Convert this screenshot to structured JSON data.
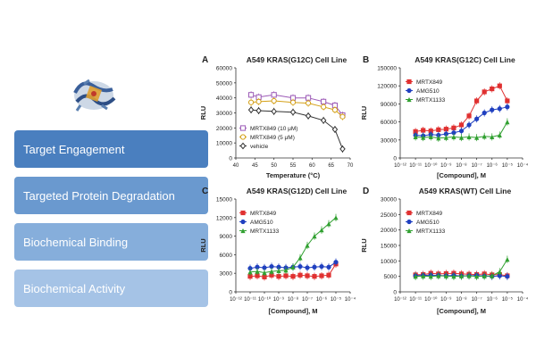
{
  "nav": {
    "items": [
      {
        "label": "Target Engagement"
      },
      {
        "label": "Targeted Protein Degradation"
      },
      {
        "label": "Biochemical Binding"
      },
      {
        "label": "Biochemical Activity"
      }
    ]
  },
  "colors": {
    "nav1": "#4a7fbf",
    "nav2": "#6a99cf",
    "nav3": "#86aedb",
    "nav4": "#a5c3e6"
  },
  "chart_data": [
    {
      "panel": "A",
      "type": "scatter",
      "title": "A549 KRAS(G12C) Cell Line",
      "xlabel": "Temperature (°C)",
      "ylabel": "RLU",
      "xlim": [
        40,
        70
      ],
      "ylim": [
        0,
        60000
      ],
      "xticks": [
        "40",
        "45",
        "50",
        "55",
        "60",
        "65",
        "70"
      ],
      "yticks": [
        "0",
        "10000",
        "20000",
        "30000",
        "40000",
        "50000",
        "60000"
      ],
      "series": [
        {
          "name": "MRTX849 (10 μM)",
          "color": "#9b59b6",
          "marker": "square-open",
          "x": [
            44,
            46,
            50,
            55,
            59,
            63,
            66,
            68
          ],
          "y": [
            42000,
            40500,
            42000,
            40000,
            40000,
            37500,
            35000,
            28500
          ],
          "fit": true
        },
        {
          "name": "MRTX849 (5 μM)",
          "color": "#d4a017",
          "marker": "circle-open",
          "x": [
            44,
            46,
            50,
            55,
            59,
            63,
            66,
            68
          ],
          "y": [
            37000,
            37500,
            38000,
            37000,
            36500,
            34000,
            32000,
            27500
          ],
          "fit": true
        },
        {
          "name": "vehicle",
          "color": "#333333",
          "marker": "diamond-open",
          "x": [
            44,
            46,
            50,
            55,
            59,
            63,
            66,
            68
          ],
          "y": [
            32000,
            31500,
            31000,
            30500,
            28000,
            25000,
            19000,
            6000
          ],
          "fit": true
        }
      ]
    },
    {
      "panel": "B",
      "type": "scatter",
      "title": "A549 KRAS(G12C) Cell Line",
      "xlabel": "[Compound], M",
      "ylabel": "RLU",
      "xlim": [
        -12,
        -4
      ],
      "ylim": [
        0,
        150000
      ],
      "xticks": [
        "10⁻¹²",
        "10⁻¹¹",
        "10⁻¹⁰",
        "10⁻⁹",
        "10⁻⁸",
        "10⁻⁷",
        "10⁻⁶",
        "10⁻⁵",
        "10⁻⁴"
      ],
      "yticks": [
        "0",
        "30000",
        "60000",
        "90000",
        "120000",
        "150000"
      ],
      "series": [
        {
          "name": "MRTX849",
          "color": "#e03030",
          "marker": "square",
          "x": [
            -11,
            -10.5,
            -10,
            -9.5,
            -9,
            -8.5,
            -8,
            -7.5,
            -7,
            -6.5,
            -6,
            -5.5,
            -5
          ],
          "y": [
            44000,
            46000,
            45000,
            47000,
            48000,
            50000,
            55000,
            70000,
            95000,
            110000,
            115000,
            120000,
            95000
          ],
          "fit": true
        },
        {
          "name": "AMG510",
          "color": "#2040c0",
          "marker": "circle",
          "x": [
            -11,
            -10.5,
            -10,
            -9.5,
            -9,
            -8.5,
            -8,
            -7.5,
            -7,
            -6.5,
            -6,
            -5.5,
            -5
          ],
          "y": [
            38000,
            37000,
            39000,
            38000,
            40000,
            42000,
            45000,
            55000,
            65000,
            75000,
            80000,
            82000,
            85000
          ],
          "fit": true
        },
        {
          "name": "MRTX1133",
          "color": "#30a030",
          "marker": "triangle",
          "x": [
            -11,
            -10.5,
            -10,
            -9.5,
            -9,
            -8.5,
            -8,
            -7.5,
            -7,
            -6.5,
            -6,
            -5.5,
            -5
          ],
          "y": [
            35000,
            34000,
            35000,
            33000,
            34000,
            35000,
            34000,
            35000,
            34000,
            36000,
            35000,
            38000,
            60000
          ],
          "fit": true
        }
      ]
    },
    {
      "panel": "C",
      "type": "scatter",
      "title": "A549 KRAS(G12D) Cell Line",
      "xlabel": "[Compound], M",
      "ylabel": "RLU",
      "xlim": [
        -12,
        -4
      ],
      "ylim": [
        0,
        15000
      ],
      "xticks": [
        "10⁻¹²",
        "10⁻¹¹",
        "10⁻¹⁰",
        "10⁻⁹",
        "10⁻⁸",
        "10⁻⁷",
        "10⁻⁶",
        "10⁻⁵",
        "10⁻⁴"
      ],
      "yticks": [
        "0",
        "3000",
        "6000",
        "9000",
        "12000",
        "15000"
      ],
      "series": [
        {
          "name": "MRTX849",
          "color": "#e03030",
          "marker": "square",
          "x": [
            -11,
            -10.5,
            -10,
            -9.5,
            -9,
            -8.5,
            -8,
            -7.5,
            -7,
            -6.5,
            -6,
            -5.5,
            -5
          ],
          "y": [
            2500,
            2600,
            2400,
            2700,
            2500,
            2600,
            2500,
            2700,
            2600,
            2500,
            2600,
            2700,
            4500
          ],
          "fit": true
        },
        {
          "name": "AMG510",
          "color": "#2040c0",
          "marker": "circle",
          "x": [
            -11,
            -10.5,
            -10,
            -9.5,
            -9,
            -8.5,
            -8,
            -7.5,
            -7,
            -6.5,
            -6,
            -5.5,
            -5
          ],
          "y": [
            3800,
            4000,
            3900,
            4100,
            4000,
            3900,
            4000,
            4100,
            3900,
            4000,
            4100,
            4000,
            4800
          ],
          "fit": true
        },
        {
          "name": "MRTX1133",
          "color": "#30a030",
          "marker": "triangle",
          "x": [
            -11,
            -10.5,
            -10,
            -9.5,
            -9,
            -8.5,
            -8,
            -7.5,
            -7,
            -6.5,
            -6,
            -5.5,
            -5
          ],
          "y": [
            3200,
            3300,
            3100,
            3300,
            3400,
            3500,
            4000,
            5500,
            7500,
            9000,
            10000,
            11000,
            12000
          ],
          "fit": true
        }
      ]
    },
    {
      "panel": "D",
      "type": "scatter",
      "title": "A549 KRAS(WT) Cell Line",
      "xlabel": "[Compound], M",
      "ylabel": "RLU",
      "xlim": [
        -12,
        -4
      ],
      "ylim": [
        0,
        30000
      ],
      "xticks": [
        "10⁻¹²",
        "10⁻¹¹",
        "10⁻¹⁰",
        "10⁻⁹",
        "10⁻⁸",
        "10⁻⁷",
        "10⁻⁶",
        "10⁻⁵",
        "10⁻⁴"
      ],
      "yticks": [
        "0",
        "5000",
        "10000",
        "15000",
        "20000",
        "25000",
        "30000"
      ],
      "series": [
        {
          "name": "MRTX849",
          "color": "#e03030",
          "marker": "square",
          "x": [
            -11,
            -10.5,
            -10,
            -9.5,
            -9,
            -8.5,
            -8,
            -7.5,
            -7,
            -6.5,
            -6,
            -5.5,
            -5
          ],
          "y": [
            5500,
            5600,
            6000,
            5800,
            5900,
            6000,
            5800,
            5700,
            5600,
            5800,
            5500,
            5600,
            5200
          ],
          "fit": true
        },
        {
          "name": "AMG510",
          "color": "#2040c0",
          "marker": "circle",
          "x": [
            -11,
            -10.5,
            -10,
            -9.5,
            -9,
            -8.5,
            -8,
            -7.5,
            -7,
            -6.5,
            -6,
            -5.5,
            -5
          ],
          "y": [
            5200,
            5300,
            5400,
            5300,
            5200,
            5300,
            5100,
            5200,
            5300,
            5100,
            5000,
            5200,
            5000
          ],
          "fit": true
        },
        {
          "name": "MRTX1133",
          "color": "#30a030",
          "marker": "triangle",
          "x": [
            -11,
            -10.5,
            -10,
            -9.5,
            -9,
            -8.5,
            -8,
            -7.5,
            -7,
            -6.5,
            -6,
            -5.5,
            -5
          ],
          "y": [
            5000,
            5100,
            5000,
            5200,
            5100,
            5000,
            5100,
            5200,
            5000,
            5100,
            5200,
            6500,
            10500
          ],
          "fit": true
        }
      ]
    }
  ]
}
